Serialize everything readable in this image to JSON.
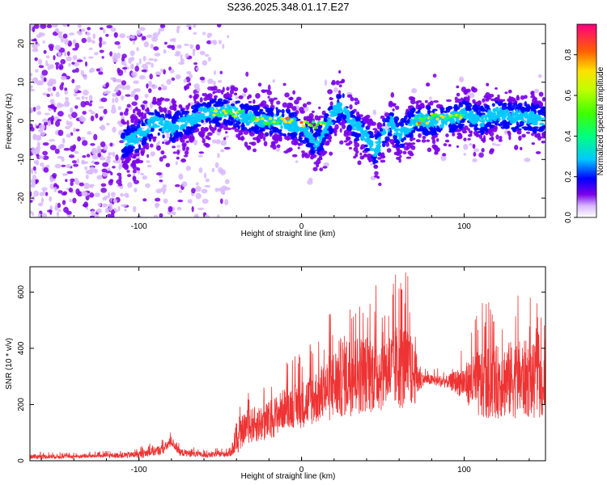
{
  "title": "S236.2025.348.01.17.E27",
  "chart_data": [
    {
      "type": "heatmap",
      "title": "S236.2025.348.01.17.E27",
      "xlabel": "Height of straight line (km)",
      "ylabel": "Frequency (Hz)",
      "xlim": [
        -167,
        150
      ],
      "ylim": [
        -25,
        25
      ],
      "xticks": [
        -100,
        0,
        100
      ],
      "yticks": [
        -20,
        -10,
        0,
        10,
        20
      ],
      "colorbar": {
        "label": "Normalized spectral amplitude",
        "range": [
          0,
          0.95
        ],
        "ticks": [
          0.0,
          0.2,
          0.4,
          0.6,
          0.8
        ]
      },
      "ridge": {
        "x": [
          -160,
          -130,
          -110,
          -100,
          -90,
          -80,
          -70,
          -60,
          -55,
          -45,
          -35,
          -25,
          -15,
          -5,
          0,
          10,
          15,
          20,
          25,
          30,
          40,
          45,
          55,
          60,
          70,
          80,
          90,
          100,
          110,
          120,
          130,
          140,
          150
        ],
        "freq": [
          -10,
          -8,
          -6,
          -4,
          0,
          -2,
          0,
          2,
          2,
          3,
          1,
          0,
          0,
          -1,
          -2,
          -6,
          -2,
          2,
          4,
          0,
          -4,
          -8,
          0,
          -4,
          0,
          0,
          0,
          2,
          0,
          2,
          1,
          1,
          0
        ]
      },
      "hot_segments": [
        {
          "x_start": -55,
          "x_end": -35,
          "freq": 2
        },
        {
          "x_start": -30,
          "x_end": -5,
          "freq": 0
        },
        {
          "x_start": 0,
          "x_end": 15,
          "freq": -1
        },
        {
          "x_start": 70,
          "x_end": 80,
          "freq": 0
        },
        {
          "x_start": 80,
          "x_end": 100,
          "freq": 1
        }
      ]
    },
    {
      "type": "line",
      "xlabel": "Height of straight line (km)",
      "ylabel": "SNR (10 * v/v)",
      "xlim": [
        -167,
        150
      ],
      "ylim": [
        0,
        690
      ],
      "xticks": [
        -100,
        0,
        100
      ],
      "yticks": [
        0,
        200,
        400,
        600
      ],
      "color": "#ee3333",
      "series": [
        {
          "name": "SNR",
          "envelope": {
            "x": [
              -167,
              -140,
              -120,
              -100,
              -85,
              -80,
              -75,
              -60,
              -45,
              -40,
              -35,
              -20,
              -10,
              0,
              10,
              20,
              25,
              40,
              55,
              60,
              65,
              70,
              75,
              90,
              100,
              110,
              120,
              130,
              140,
              150
            ],
            "mean": [
              15,
              15,
              18,
              22,
              40,
              70,
              30,
              20,
              25,
              60,
              120,
              140,
              190,
              200,
              230,
              270,
              300,
              310,
              320,
              340,
              330,
              300,
              290,
              280,
              280,
              270,
              280,
              290,
              290,
              260
            ],
            "peak": [
              35,
              30,
              35,
              50,
              80,
              110,
              60,
              40,
              50,
              150,
              250,
              300,
              350,
              390,
              450,
              560,
              630,
              620,
              640,
              690,
              670,
              520,
              330,
              330,
              420,
              560,
              570,
              600,
              600,
              520
            ]
          }
        }
      ]
    }
  ]
}
